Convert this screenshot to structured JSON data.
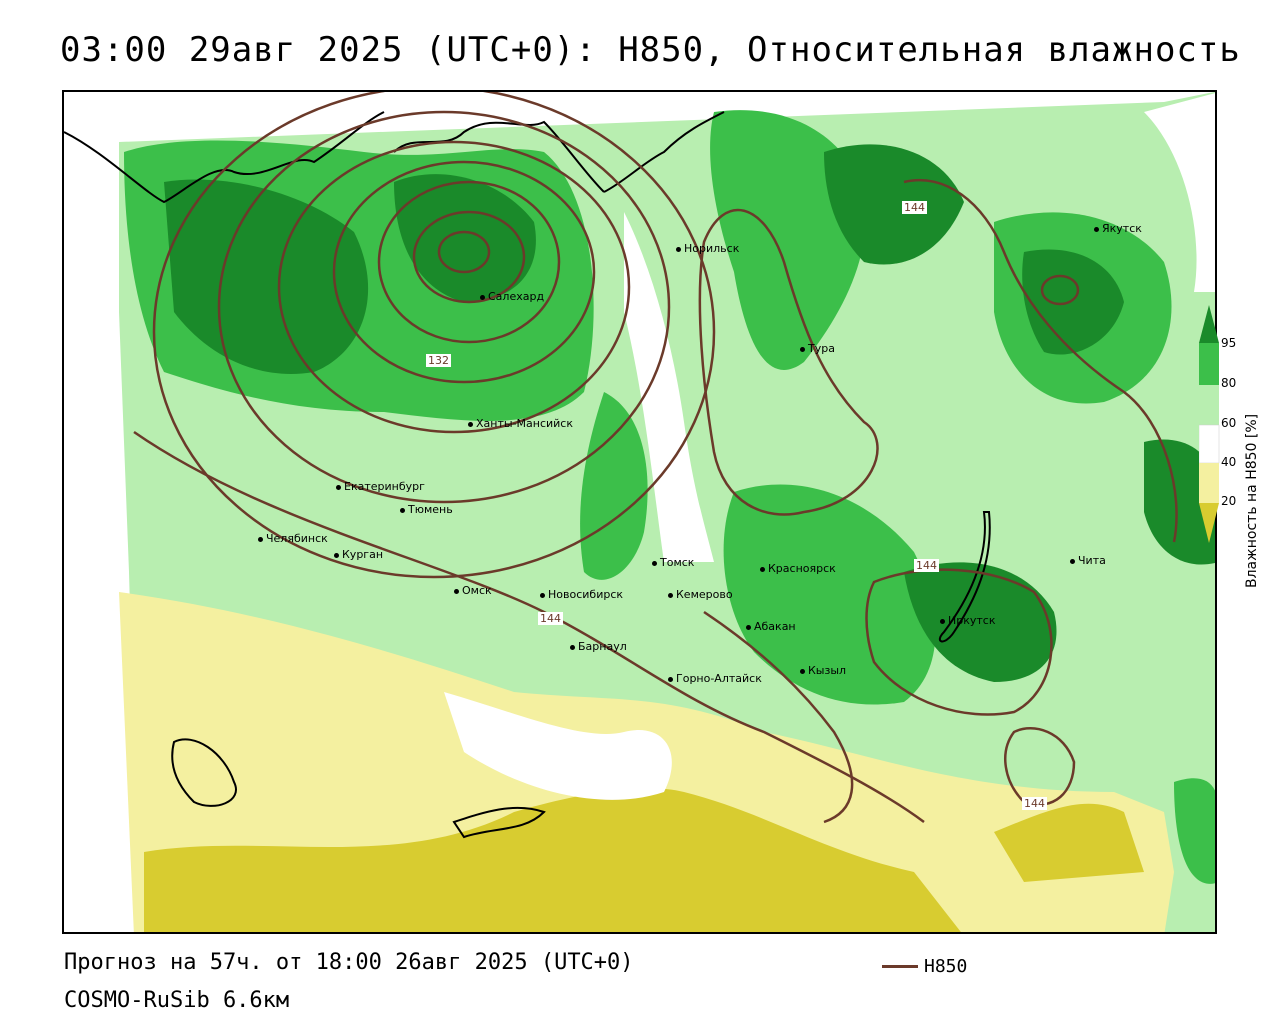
{
  "header": {
    "title": "03:00 29авг 2025 (UTC+0): H850, Относительная влажность"
  },
  "footer": {
    "forecast": "Прогноз на 57ч. от 18:00 26авг 2025 (UTC+0)",
    "model": "COSMO-RuSib 6.6км"
  },
  "legend": {
    "contour_label": "H850"
  },
  "colorbar": {
    "title": "Влажность на H850 [%]",
    "ticks": [
      "95",
      "80",
      "60",
      "40",
      "20"
    ],
    "colors": {
      "very_high": "#1a8a2a",
      "high": "#3cbf4a",
      "mid": "#b8eeb0",
      "neutral": "#ffffff",
      "low": "#f4f0a0",
      "very_low": "#d8cc30"
    }
  },
  "isolines": {
    "labels": [
      "132",
      "144",
      "144",
      "144",
      "144"
    ],
    "color": "#6b3a2a"
  },
  "cities": [
    {
      "name": "Норильск"
    },
    {
      "name": "Салехард"
    },
    {
      "name": "Тура"
    },
    {
      "name": "Якутск"
    },
    {
      "name": "Ханты-Мансийск"
    },
    {
      "name": "Екатеринбург"
    },
    {
      "name": "Тюмень"
    },
    {
      "name": "Челябинск"
    },
    {
      "name": "Курган"
    },
    {
      "name": "Омск"
    },
    {
      "name": "Новосибирск"
    },
    {
      "name": "Томск"
    },
    {
      "name": "Кемерово"
    },
    {
      "name": "Красноярск"
    },
    {
      "name": "Абакан"
    },
    {
      "name": "Барнаул"
    },
    {
      "name": "Горно-Алтайск"
    },
    {
      "name": "Кызыл"
    },
    {
      "name": "Иркутск"
    },
    {
      "name": "Чита"
    }
  ]
}
